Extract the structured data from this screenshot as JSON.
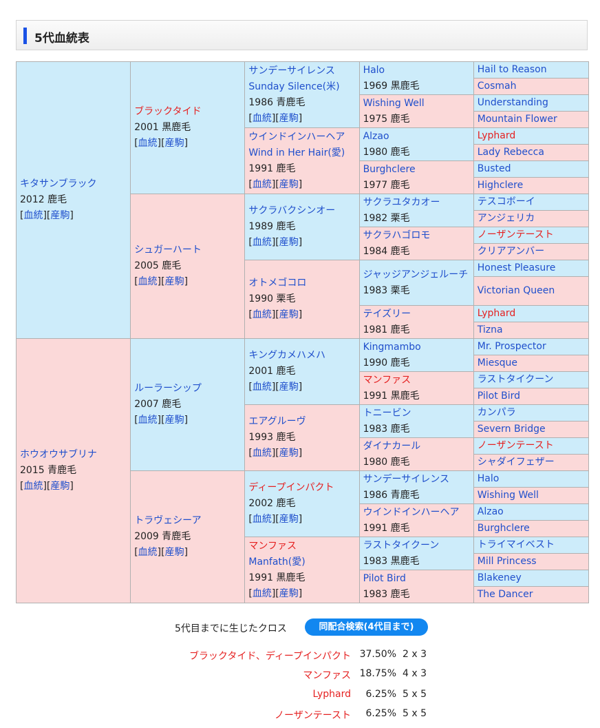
{
  "header": {
    "title": "5代血統表"
  },
  "links": {
    "ketto": "血統",
    "sanku": "産駒"
  },
  "gen1": [
    {
      "name": "キタサンブラック",
      "info": "2012 鹿毛"
    },
    {
      "name": "ホウオウサブリナ",
      "info": "2015 青鹿毛"
    }
  ],
  "gen2": [
    {
      "name": "ブラックタイド",
      "info": "2001 黒鹿毛"
    },
    {
      "name": "シュガーハート",
      "info": "2005 鹿毛"
    },
    {
      "name": "ルーラーシップ",
      "info": "2007 鹿毛"
    },
    {
      "name": "トラヴェシーア",
      "info": "2009 青鹿毛"
    }
  ],
  "gen3": [
    {
      "name": "サンデーサイレンス",
      "name2": "Sunday Silence(米)",
      "info": "1986 青鹿毛"
    },
    {
      "name": "ウインドインハーヘア",
      "name2": "Wind in Her Hair(愛)",
      "info": "1991 鹿毛"
    },
    {
      "name": "サクラバクシンオー",
      "info": "1989 鹿毛"
    },
    {
      "name": "オトメゴコロ",
      "info": "1990 栗毛"
    },
    {
      "name": "キングカメハメハ",
      "info": "2001 鹿毛"
    },
    {
      "name": "エアグルーヴ",
      "info": "1993 鹿毛"
    },
    {
      "name": "ディープインパクト",
      "info": "2002 鹿毛"
    },
    {
      "name": "マンファス",
      "name2": "Manfath(愛)",
      "info": "1991 黒鹿毛"
    }
  ],
  "gen4": [
    {
      "name": "Halo",
      "info": "1969 黒鹿毛"
    },
    {
      "name": "Wishing Well",
      "info": "1975 鹿毛"
    },
    {
      "name": "Alzao",
      "info": "1980 鹿毛"
    },
    {
      "name": "Burghclere",
      "info": "1977 鹿毛"
    },
    {
      "name": "サクラユタカオー",
      "info": "1982 栗毛"
    },
    {
      "name": "サクラハゴロモ",
      "info": "1984 鹿毛"
    },
    {
      "name": "ジャッジアンジェルーチ",
      "info": "1983 栗毛"
    },
    {
      "name": "テイズリー",
      "info": "1981 鹿毛"
    },
    {
      "name": "Kingmambo",
      "info": "1990 鹿毛"
    },
    {
      "name": "マンファス",
      "info": "1991 黒鹿毛"
    },
    {
      "name": "トニービン",
      "info": "1983 鹿毛"
    },
    {
      "name": "ダイナカール",
      "info": "1980 鹿毛"
    },
    {
      "name": "サンデーサイレンス",
      "info": "1986 青鹿毛"
    },
    {
      "name": "ウインドインハーヘア",
      "info": "1991 鹿毛"
    },
    {
      "name": "ラストタイクーン",
      "info": "1983 黒鹿毛"
    },
    {
      "name": "Pilot Bird",
      "info": "1983 鹿毛"
    }
  ],
  "gen5": [
    "Hail to Reason",
    "Cosmah",
    "Understanding",
    "Mountain Flower",
    "Lyphard",
    "Lady Rebecca",
    "Busted",
    "Highclere",
    "テスコボーイ",
    "アンジェリカ",
    "ノーザンテースト",
    "クリアアンバー",
    "Honest Pleasure",
    "Victorian Queen",
    "Lyphard",
    "Tizna",
    "Mr. Prospector",
    "Miesque",
    "ラストタイクーン",
    "Pilot Bird",
    "カンパラ",
    "Severn Bridge",
    "ノーザンテースト",
    "シャダイフェザー",
    "Halo",
    "Wishing Well",
    "Alzao",
    "Burghclere",
    "トライマイベスト",
    "Mill Princess",
    "Blakeney",
    "The Dancer"
  ],
  "cross": {
    "caption": "5代目までに生じたクロス",
    "button": "同配合検索(4代目まで)",
    "rows": [
      {
        "name": "ブラックタイド、ディープインパクト",
        "pct": "37.50%",
        "gen": "2 x 3"
      },
      {
        "name": "マンファス",
        "pct": "18.75%",
        "gen": "4 x 3"
      },
      {
        "name": "Lyphard",
        "pct": "6.25%",
        "gen": "5 x 5"
      },
      {
        "name": "ノーザンテースト",
        "pct": "6.25%",
        "gen": "5 x 5"
      }
    ]
  },
  "colors": {
    "male_bg": "#cdecfa",
    "female_bg": "#fbd9d9",
    "link_blue": "#1f4fcc",
    "cross_red": "#e52121",
    "header_accent": "#1a52e6",
    "button_bg": "#1287f0"
  }
}
